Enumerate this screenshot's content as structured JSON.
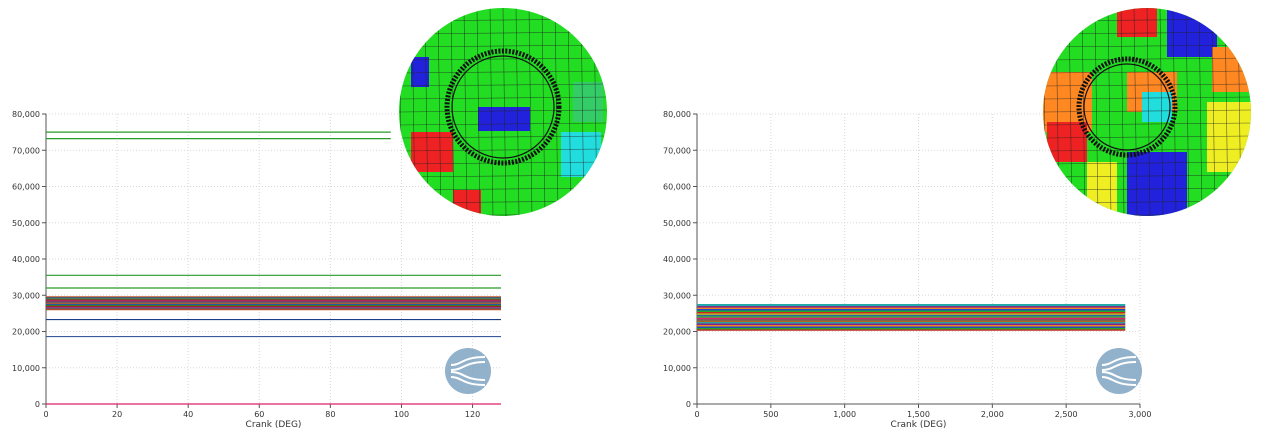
{
  "colors": {
    "grid": "#d8d8d8",
    "axis": "#555555",
    "logo": "#7fa3c2",
    "heat_green": "#22dd22",
    "heat_blue": "#2222dd",
    "heat_red": "#ee2222",
    "heat_cyan": "#22dddd",
    "heat_yellow": "#eeee22",
    "heat_orange": "#ff8822"
  },
  "icons": {
    "logo": "pipe-logo-icon",
    "heatmap": "contour-heatmap-icon"
  },
  "chart_data": [
    {
      "type": "line",
      "xlabel": "Crank (DEG)",
      "ylabel": "",
      "xlim": [
        0,
        128
      ],
      "ylim": [
        0,
        80000
      ],
      "xticks": [
        0,
        20,
        40,
        60,
        80,
        100,
        120
      ],
      "xtick_labels": [
        "0",
        "20",
        "40",
        "60",
        "80",
        "100",
        "120"
      ],
      "yticks": [
        0,
        10000,
        20000,
        30000,
        40000,
        50000,
        60000,
        70000,
        80000
      ],
      "ytick_labels": [
        "0",
        "10,000",
        "20,000",
        "30,000",
        "40,000",
        "50,000",
        "60,000",
        "70,000",
        "80,000"
      ],
      "grid": true,
      "series_style": "horizontal constant lines",
      "series": [
        {
          "y": 75000,
          "x": [
            0,
            97
          ],
          "color": "#2a9a2a"
        },
        {
          "y": 73200,
          "x": [
            0,
            97
          ],
          "color": "#2a9a2a"
        },
        {
          "y": 35500,
          "x": [
            0,
            128
          ],
          "color": "#2a9a2a"
        },
        {
          "y": 32000,
          "x": [
            0,
            128
          ],
          "color": "#2a9a2a"
        },
        {
          "y": 29500,
          "x": [
            0,
            128
          ],
          "color": "#4a7a2a"
        },
        {
          "y": 29000,
          "x": [
            0,
            128
          ],
          "color": "#cc3333"
        },
        {
          "y": 28600,
          "x": [
            0,
            128
          ],
          "color": "#228822"
        },
        {
          "y": 28200,
          "x": [
            0,
            128
          ],
          "color": "#aa2222"
        },
        {
          "y": 27800,
          "x": [
            0,
            128
          ],
          "color": "#666666"
        },
        {
          "y": 27400,
          "x": [
            0,
            128
          ],
          "color": "#2255aa"
        },
        {
          "y": 27000,
          "x": [
            0,
            128
          ],
          "color": "#bb5522"
        },
        {
          "y": 26600,
          "x": [
            0,
            128
          ],
          "color": "#2a9a2a"
        },
        {
          "y": 26200,
          "x": [
            0,
            128
          ],
          "color": "#aa3333"
        },
        {
          "y": 23300,
          "x": [
            0,
            128
          ],
          "color": "#1a3a8a"
        },
        {
          "y": 18600,
          "x": [
            0,
            128
          ],
          "color": "#3a5a9a"
        },
        {
          "y": 0,
          "x": [
            0,
            128
          ],
          "color": "#dd2266"
        }
      ]
    },
    {
      "type": "line",
      "xlabel": "Crank (DEG)",
      "ylabel": "",
      "xlim": [
        0,
        3000
      ],
      "ylim": [
        0,
        80000
      ],
      "xticks": [
        0,
        500,
        1000,
        1500,
        2000,
        2500,
        3000
      ],
      "xtick_labels": [
        "0",
        "500",
        "1,000",
        "1,500",
        "2,000",
        "2,500",
        "3,000"
      ],
      "yticks": [
        0,
        10000,
        20000,
        30000,
        40000,
        50000,
        60000,
        70000,
        80000
      ],
      "ytick_labels": [
        "0",
        "10,000",
        "20,000",
        "30,000",
        "40,000",
        "50,000",
        "60,000",
        "70,000",
        "80,000"
      ],
      "grid": true,
      "series_style": "dense band of horizontal constant lines",
      "band": {
        "x": [
          0,
          2900
        ],
        "y_min": 20500,
        "y_max": 27500
      }
    }
  ]
}
